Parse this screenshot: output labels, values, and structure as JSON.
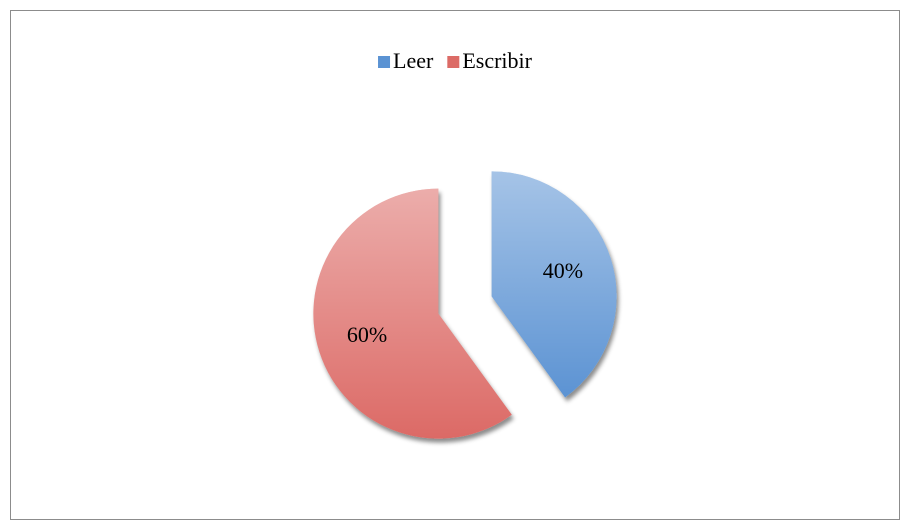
{
  "chart_data": {
    "type": "pie",
    "categories": [
      "Leer",
      "Escribir"
    ],
    "values": [
      40,
      60
    ],
    "value_labels": [
      "40%",
      "60%"
    ],
    "colors": [
      "#5b93d3",
      "#dc6b66"
    ],
    "legend": "top"
  }
}
